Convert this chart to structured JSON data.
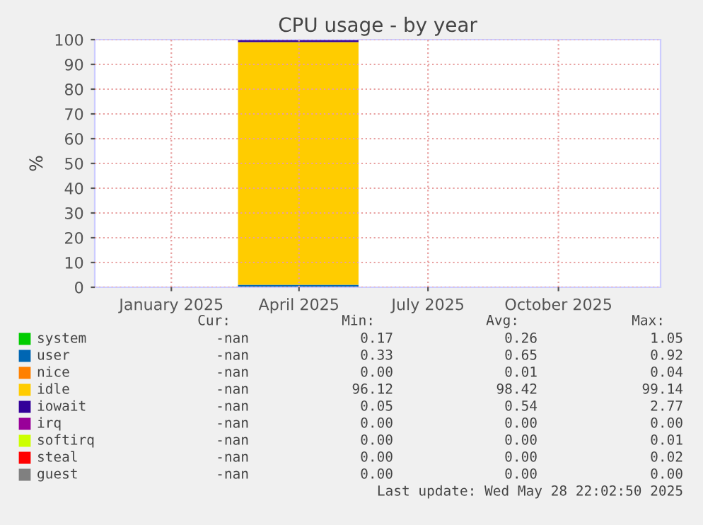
{
  "chart_data": {
    "type": "area",
    "stacked": true,
    "title": "CPU usage - by year",
    "ylabel": "%",
    "x": [
      "2025-03-03",
      "2025-05-27"
    ],
    "xlim": [
      "2024-11-22",
      "2025-12-26"
    ],
    "xticks": [
      {
        "value": "2025-01-15",
        "label": "January 2025"
      },
      {
        "value": "2025-04-15",
        "label": "April 2025"
      },
      {
        "value": "2025-07-15",
        "label": "July 2025"
      },
      {
        "value": "2025-10-15",
        "label": "October 2025"
      }
    ],
    "ylim": [
      0,
      100
    ],
    "yticks": [
      0,
      10,
      20,
      30,
      40,
      50,
      60,
      70,
      80,
      90,
      100
    ],
    "grid": true,
    "legend": "bottom",
    "series": [
      {
        "name": "system",
        "color": "#00cc00",
        "values": [
          null,
          null
        ]
      },
      {
        "name": "user",
        "color": "#0066b3",
        "values": [
          1,
          1
        ]
      },
      {
        "name": "nice",
        "color": "#ff8000",
        "values": [
          null,
          null
        ]
      },
      {
        "name": "idle",
        "color": "#ffcc00",
        "values": [
          98,
          98
        ]
      },
      {
        "name": "iowait",
        "color": "#330099",
        "values": [
          1,
          1
        ]
      },
      {
        "name": "irq",
        "color": "#990099",
        "values": [
          null,
          null
        ]
      },
      {
        "name": "softirq",
        "color": "#ccff00",
        "values": [
          null,
          null
        ]
      },
      {
        "name": "steal",
        "color": "#ff0000",
        "values": [
          null,
          null
        ]
      },
      {
        "name": "guest",
        "color": "#808080",
        "values": [
          null,
          null
        ]
      }
    ],
    "annotations": [
      "Cur:",
      "Min:",
      "Avg:",
      "Max:",
      "-nan",
      "0.17",
      "0.26",
      "1.05",
      "-nan",
      "0.33",
      "0.65",
      "0.92",
      "-nan",
      "0.00",
      "0.01",
      "0.04",
      "-nan",
      "96.12",
      "98.42",
      "99.14",
      "-nan",
      "0.05",
      "0.54",
      "2.77",
      "-nan",
      "0.00",
      "0.00",
      "0.00",
      "-nan",
      "0.00",
      "0.00",
      "0.01",
      "-nan",
      "0.00",
      "0.00",
      "0.02",
      "-nan",
      "0.00",
      "0.00",
      "0.00",
      "Last update: Wed May 28 22:02:50 2025"
    ]
  }
}
